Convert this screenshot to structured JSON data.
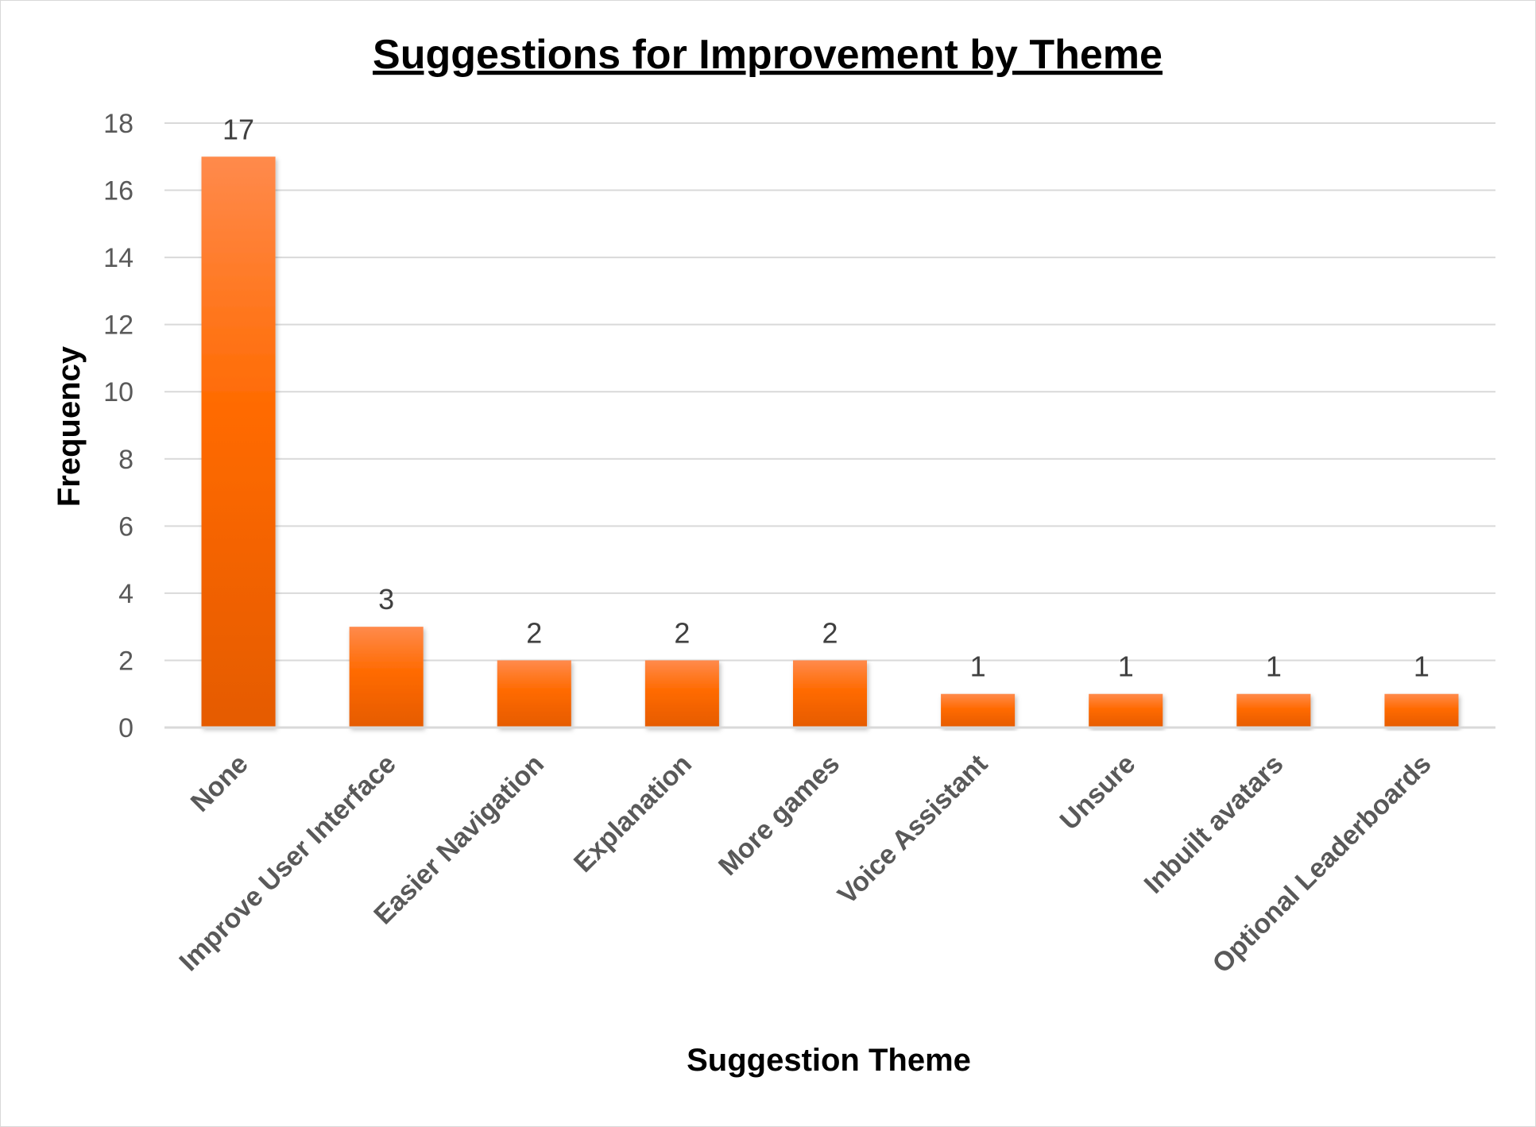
{
  "chart_data": {
    "type": "bar",
    "title": "Suggestions for Improvement by Theme",
    "xlabel": "Suggestion Theme",
    "ylabel": "Frequency",
    "categories": [
      "None",
      "Improve User Interface",
      "Easier Navigation",
      "Explanation",
      "More games",
      "Voice Assistant",
      "Unsure",
      "Inbuilt avatars",
      "Optional Leaderboards"
    ],
    "values": [
      17,
      3,
      2,
      2,
      2,
      1,
      1,
      1,
      1
    ],
    "yticks": [
      "0",
      "2",
      "4",
      "6",
      "8",
      "10",
      "12",
      "14",
      "16",
      "18"
    ],
    "ylim": [
      0,
      18
    ],
    "grid": true,
    "legend": "none",
    "data_labels": true,
    "colors": {
      "bar_light": "#ff8a4c",
      "bar_mid": "#ff6a00",
      "bar_dark": "#e55b00",
      "grid": "#d9d9d9"
    }
  }
}
